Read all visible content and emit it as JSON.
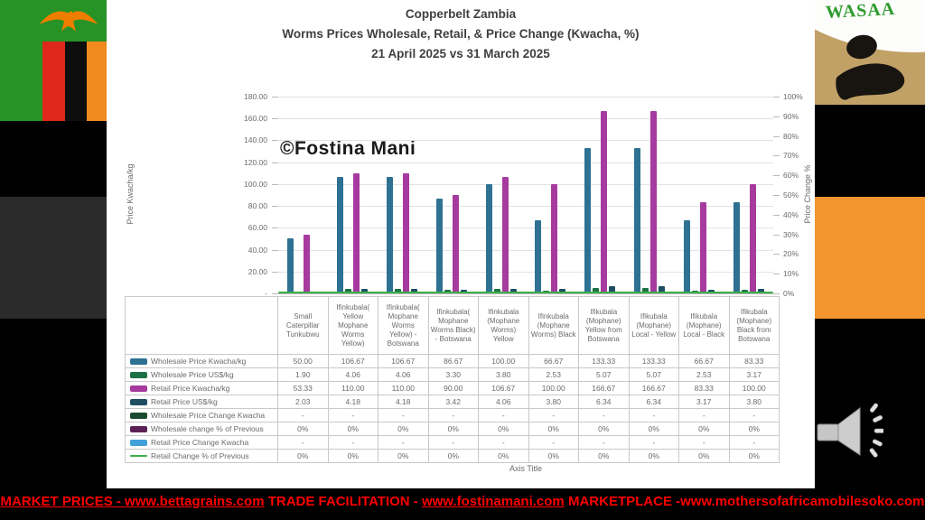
{
  "slide": {
    "watermark": "©Fostina Mani",
    "logo": {
      "text": "WASAA",
      "text_color": "#2E9B2E",
      "bg": "#C2A167",
      "mark_color": "#181410"
    },
    "flag_colors": {
      "green": "#279327",
      "red": "#DE281B",
      "black": "#0E0E0E",
      "orange": "#F18A1E",
      "eagle": "#EF7D00"
    },
    "accent_blocks": {
      "left_gray": "#2B2B2B",
      "right_orange": "#F2952E"
    },
    "footer": {
      "color": "#FF0000",
      "segments": [
        {
          "text": "MARKET PRICES - www.bettagrains.com",
          "underline": true
        },
        {
          "text": " TRADE FACILITATION - ",
          "underline": false
        },
        {
          "text": "www.fostinamani.com",
          "underline": true
        },
        {
          "text": "  MARKETPLACE -www.mothersofafricamobilesoko.com",
          "underline": false
        }
      ]
    }
  },
  "chart_data": {
    "type": "bar",
    "title": "Copperbelt Zambia",
    "subtitle": "Worms Prices Wholesale, Retail, & Price Change (Kwacha, %)",
    "subtitle2": "21 April 2025 vs 31 March 2025",
    "x_axis_title": "Axis Title",
    "grid": "horizontal",
    "legend_position": "table-left",
    "left_axis": {
      "label": "Price Kwacha/kg",
      "min": 0,
      "max": 180,
      "tick_step": 20,
      "tick_labels": [
        "180.00",
        "160.00",
        "140.00",
        "120.00",
        "100.00",
        "80.00",
        "60.00",
        "40.00",
        "20.00",
        "-"
      ],
      "tick_values": [
        180,
        160,
        140,
        120,
        100,
        80,
        60,
        40,
        20,
        0
      ]
    },
    "right_axis": {
      "label": "Price Change %",
      "min": 0,
      "max": 100,
      "tick_step": 10,
      "tick_labels": [
        "100%",
        "90%",
        "80%",
        "70%",
        "60%",
        "50%",
        "40%",
        "30%",
        "20%",
        "10%",
        "0%"
      ],
      "tick_values": [
        100,
        90,
        80,
        70,
        60,
        50,
        40,
        30,
        20,
        10,
        0
      ]
    },
    "categories": [
      "Small Caterpillar Tunkubwu",
      "Ifinkubala( Yellow Mophane Worms Yellow)",
      "Ifinkubala( Mophane Worms Yellow) - Botswana",
      "Ifinkubala( Mophane Worms Black) - Botswana",
      "Ifinkubala (Mophane Worms) Yellow",
      "Ifinkubala (Mophane Worms) Black",
      "Ifikubala (Mophane) Yellow from Botswana",
      "Ifikubala (Mophane) Local - Yellow",
      "Ifikubala (Mophane) Local - Black",
      "Ifikubala (Mophane) Black from Botswana"
    ],
    "series": [
      {
        "name": "Wholesale Price Kwacha/kg",
        "type": "bar",
        "axis": "left",
        "color": "#2E7193",
        "values": [
          50.0,
          106.67,
          106.67,
          86.67,
          100.0,
          66.67,
          133.33,
          133.33,
          66.67,
          83.33
        ],
        "table_display": [
          "50.00",
          "106.67",
          "106.67",
          "86.67",
          "100.00",
          "66.67",
          "133.33",
          "133.33",
          "66.67",
          "83.33"
        ]
      },
      {
        "name": "Wholesale Price US$/kg",
        "type": "bar",
        "axis": "left",
        "color": "#1E7145",
        "values": [
          1.9,
          4.06,
          4.06,
          3.3,
          3.8,
          2.53,
          5.07,
          5.07,
          2.53,
          3.17
        ],
        "table_display": [
          "1.90",
          "4.06",
          "4.06",
          "3.30",
          "3.80",
          "2.53",
          "5.07",
          "5.07",
          "2.53",
          "3.17"
        ]
      },
      {
        "name": "Retail Price Kwacha/kg",
        "type": "bar",
        "axis": "left",
        "color": "#A63A9E",
        "values": [
          53.33,
          110.0,
          110.0,
          90.0,
          106.67,
          100.0,
          166.67,
          166.67,
          83.33,
          100.0
        ],
        "table_display": [
          "53.33",
          "110.00",
          "110.00",
          "90.00",
          "106.67",
          "100.00",
          "166.67",
          "166.67",
          "83.33",
          "100.00"
        ]
      },
      {
        "name": "Retail Price US$/kg",
        "type": "bar",
        "axis": "left",
        "color": "#1F4E63",
        "values": [
          2.03,
          4.18,
          4.18,
          3.42,
          4.06,
          3.8,
          6.34,
          6.34,
          3.17,
          3.8
        ],
        "table_display": [
          "2.03",
          "4.18",
          "4.18",
          "3.42",
          "4.06",
          "3.80",
          "6.34",
          "6.34",
          "3.17",
          "3.80"
        ]
      },
      {
        "name": "Wholesale Price Change Kwacha",
        "type": "bar",
        "axis": "left",
        "color": "#1C4A2F",
        "values": [
          0,
          0,
          0,
          0,
          0,
          0,
          0,
          0,
          0,
          0
        ],
        "table_display": [
          "-",
          "-",
          "-",
          "-",
          "-",
          "-",
          "-",
          "-",
          "-",
          "-"
        ]
      },
      {
        "name": "Wholesale change  % of Previous",
        "type": "bar",
        "axis": "right",
        "color": "#5B2056",
        "values": [
          0,
          0,
          0,
          0,
          0,
          0,
          0,
          0,
          0,
          0
        ],
        "table_display": [
          "0%",
          "0%",
          "0%",
          "0%",
          "0%",
          "0%",
          "0%",
          "0%",
          "0%",
          "0%"
        ]
      },
      {
        "name": "Retail Price Change Kwacha",
        "type": "bar",
        "axis": "left",
        "color": "#41A0D9",
        "values": [
          0,
          0,
          0,
          0,
          0,
          0,
          0,
          0,
          0,
          0
        ],
        "table_display": [
          "-",
          "-",
          "-",
          "-",
          "-",
          "-",
          "-",
          "-",
          "-",
          "-"
        ]
      },
      {
        "name": "Retail Change % of Previous",
        "type": "line",
        "axis": "right",
        "color": "#3CAE49",
        "values": [
          0,
          0,
          0,
          0,
          0,
          0,
          0,
          0,
          0,
          0
        ],
        "table_display": [
          "0%",
          "0%",
          "0%",
          "0%",
          "0%",
          "0%",
          "0%",
          "0%",
          "0%",
          "0%"
        ]
      }
    ]
  }
}
